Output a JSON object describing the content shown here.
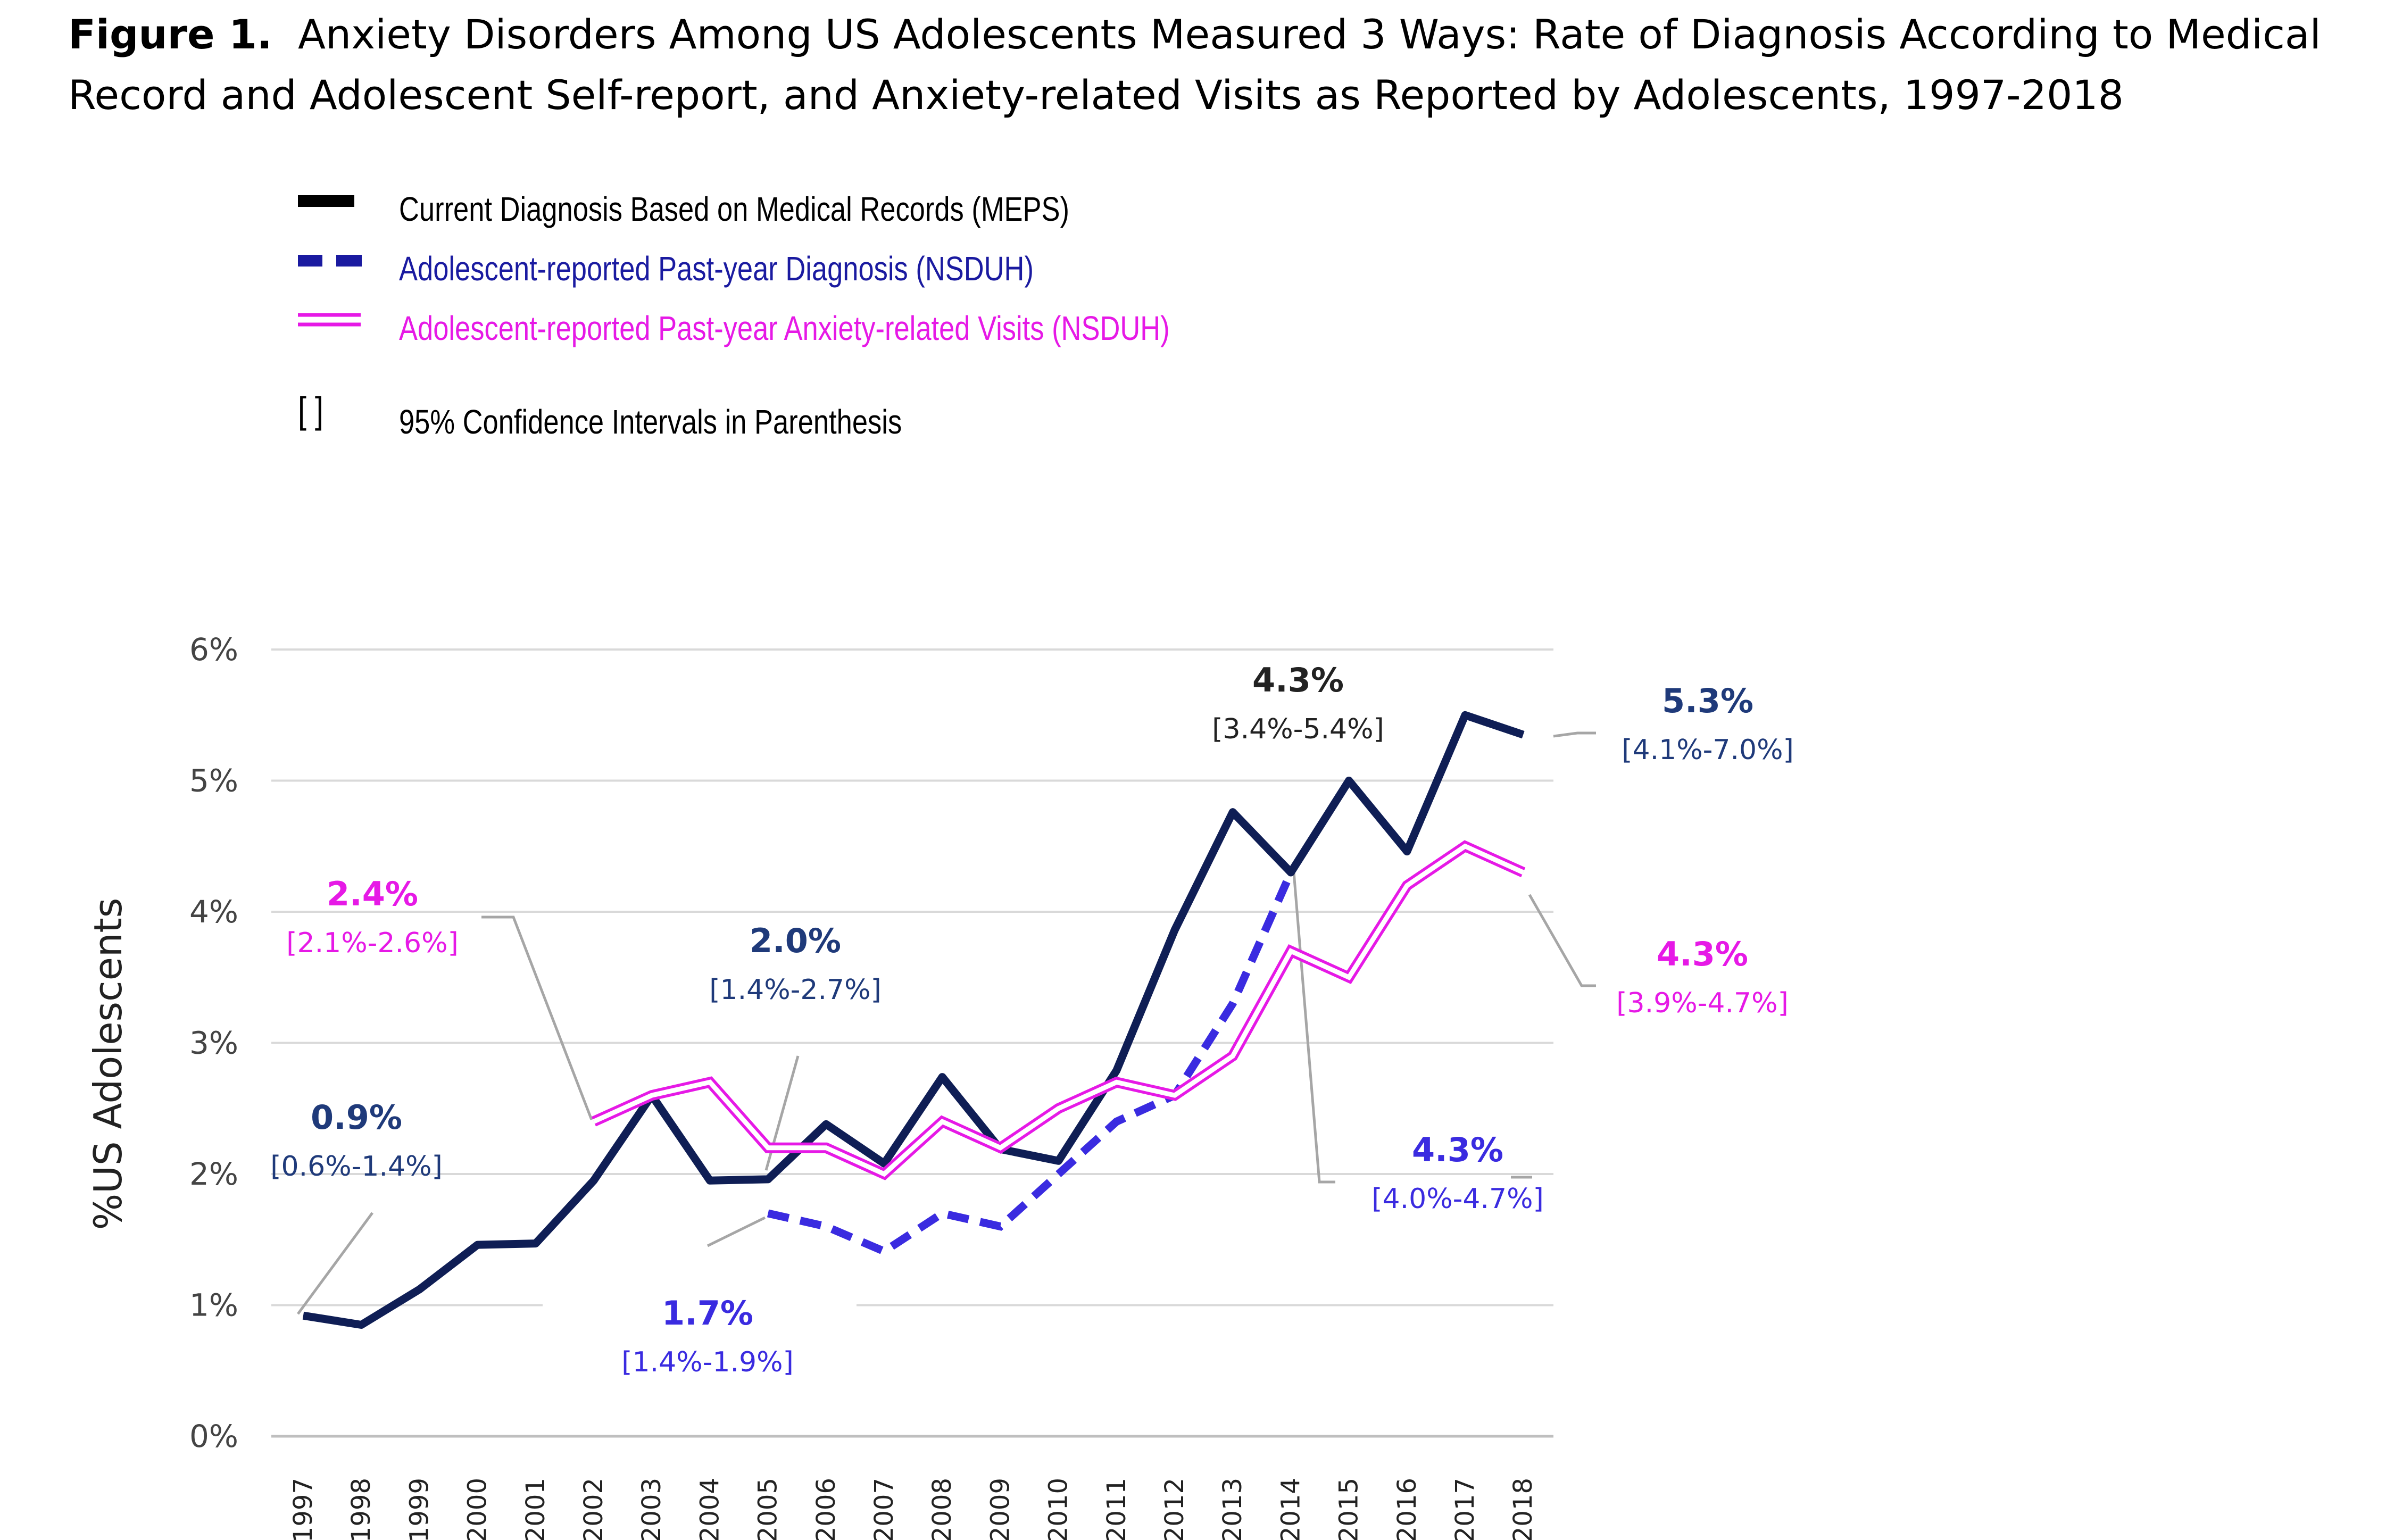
{
  "figure": {
    "label": "Figure 1.",
    "title": "Anxiety Disorders Among US Adolescents Measured 3 Ways: Rate of Diagnosis According to Medical Record and Adolescent Self-report, and Anxiety-related Visits as Reported by Adolescents, 1997-2018"
  },
  "legend": {
    "items": [
      {
        "name": "Current Diagnosis Based on Medical Records (MEPS)",
        "color": "#000000",
        "style": "solid"
      },
      {
        "name": "Adolescent-reported Past-year Diagnosis (NSDUH)",
        "color": "#1a1aa0",
        "style": "dashed"
      },
      {
        "name": "Adolescent-reported Past-year Anxiety-related Visits (NSDUH)",
        "color": "#e619e6",
        "style": "double"
      }
    ],
    "ci_symbol": "[  ]",
    "ci_note": "95% Confidence Intervals in Parenthesis"
  },
  "chart_data": {
    "type": "line",
    "title": "Anxiety Disorders Among US Adolescents Measured 3 Ways",
    "xlabel": "",
    "ylabel": "%US Adolescents",
    "ylim": [
      0,
      6
    ],
    "y_ticks": [
      "0%",
      "1%",
      "2%",
      "3%",
      "4%",
      "5%",
      "6%"
    ],
    "grid": true,
    "categories": [
      "1997",
      "1998",
      "1999",
      "2000",
      "2001",
      "2002",
      "2003",
      "2004",
      "2005",
      "2006",
      "2007",
      "2008",
      "2009",
      "2010",
      "2011",
      "2012",
      "2013",
      "2014",
      "2015",
      "2016",
      "2017",
      "2018"
    ],
    "series": [
      {
        "name": "Current Diagnosis Based on Medical Records (MEPS)",
        "color": "#0f1e55",
        "style": "solid",
        "values": [
          0.92,
          0.85,
          1.12,
          1.46,
          1.47,
          1.95,
          2.6,
          1.95,
          1.96,
          2.38,
          2.08,
          2.74,
          2.19,
          2.1,
          2.79,
          3.86,
          4.76,
          4.3,
          5.0,
          4.46,
          5.5,
          5.35
        ]
      },
      {
        "name": "Adolescent-reported Past-year Diagnosis (NSDUH)",
        "color": "#3a2be0",
        "style": "dashed",
        "values": [
          null,
          null,
          null,
          null,
          null,
          null,
          null,
          null,
          1.7,
          1.6,
          1.41,
          1.7,
          1.6,
          2.0,
          2.4,
          2.6,
          3.3,
          4.3,
          null,
          null,
          null,
          null
        ]
      },
      {
        "name": "Adolescent-reported Past-year Anxiety-related Visits (NSDUH)",
        "color": "#e619e6",
        "style": "double",
        "values": [
          null,
          null,
          null,
          null,
          null,
          2.4,
          2.6,
          2.7,
          2.2,
          2.2,
          2.0,
          2.4,
          2.2,
          2.5,
          2.7,
          2.6,
          2.9,
          3.7,
          3.5,
          4.2,
          4.5,
          4.3
        ]
      }
    ],
    "annotations": [
      {
        "value": "0.9%",
        "ci": "[0.6%-1.4%]",
        "color": "#1f3a7a",
        "series": 0,
        "year": "1997"
      },
      {
        "value": "2.4%",
        "ci": "[2.1%-2.6%]",
        "color": "#e619e6",
        "series": 2,
        "year": "2002"
      },
      {
        "value": "2.0%",
        "ci": "[1.4%-2.7%]",
        "color": "#1f3a7a",
        "series": 0,
        "year": "2005"
      },
      {
        "value": "1.7%",
        "ci": "[1.4%-1.9%]",
        "color": "#3a2be0",
        "series": 1,
        "year": "2005"
      },
      {
        "value": "4.3%",
        "ci": "[3.4%-5.4%]",
        "color": "#222222",
        "series": 0,
        "year": "2014"
      },
      {
        "value": "4.3%",
        "ci": "[4.0%-4.7%]",
        "color": "#3a2be0",
        "series": 1,
        "year": "2014"
      },
      {
        "value": "5.3%",
        "ci": "[4.1%-7.0%]",
        "color": "#1f3a7a",
        "series": 0,
        "year": "2018"
      },
      {
        "value": "4.3%",
        "ci": "[3.9%-4.7%]",
        "color": "#e619e6",
        "series": 2,
        "year": "2018"
      }
    ]
  }
}
